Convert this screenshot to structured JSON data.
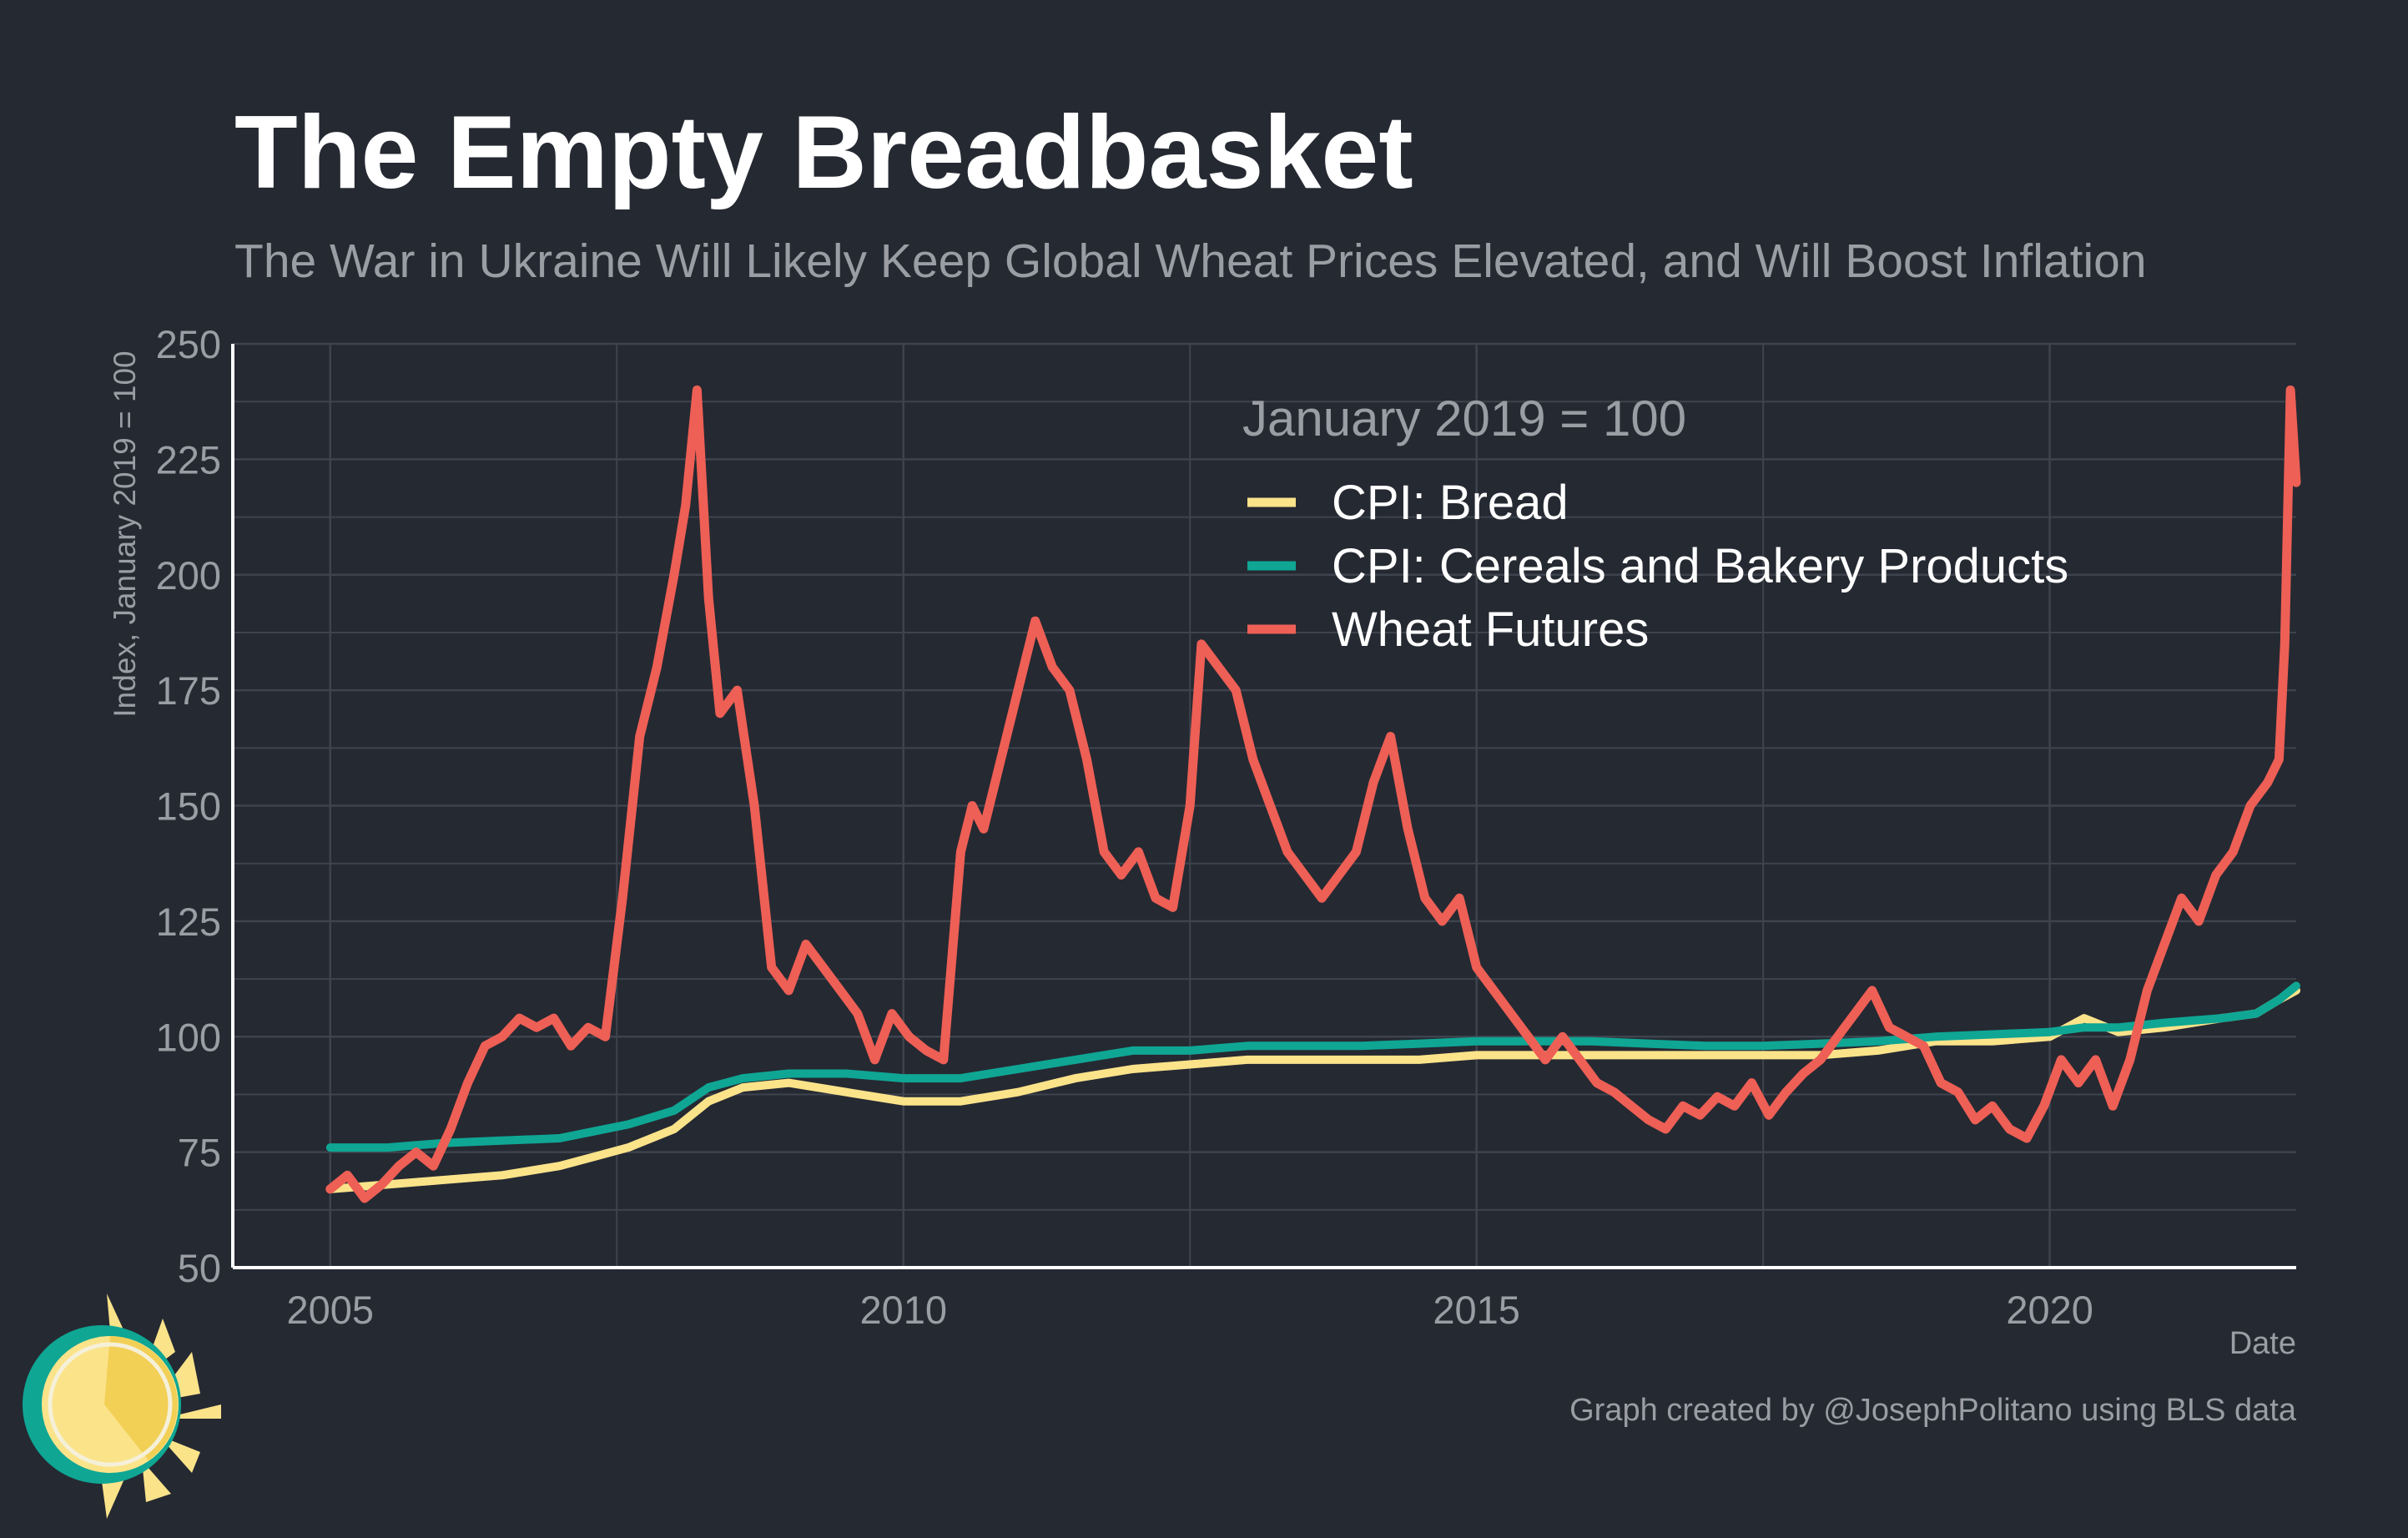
{
  "title": "The Empty Breadbasket",
  "subtitle": "The War in Ukraine Will Likely Keep Global Wheat Prices Elevated, and Will Boost Inflation",
  "caption": "Graph created by @JosephPolitano using BLS data",
  "logo_icon": "sun-logo-icon",
  "colors": {
    "background": "#252932",
    "grid": "#3e434d",
    "axis": "#ffffff",
    "text_muted": "#9a9da3",
    "bread": "#fbe38a",
    "cereals": "#0fa694",
    "wheat": "#ee5f55"
  },
  "chart_data": {
    "type": "line",
    "title": "The Empty Breadbasket",
    "subtitle": "The War in Ukraine Will Likely Keep Global Wheat Prices Elevated, and Will Boost Inflation",
    "xlabel": "Date",
    "ylabel": "Index, January 2019 = 100",
    "xlim": [
      2004.15,
      2022.15
    ],
    "ylim": [
      50,
      250
    ],
    "x_ticks": [
      2005,
      2010,
      2015,
      2020
    ],
    "x_tick_labels": [
      "2005",
      "2010",
      "2015",
      "2020"
    ],
    "y_ticks": [
      50,
      75,
      100,
      125,
      150,
      175,
      200,
      225,
      250
    ],
    "y_tick_labels": [
      "50",
      "75",
      "100",
      "125",
      "150",
      "175",
      "200",
      "225",
      "250"
    ],
    "grid": true,
    "legend_title": "January 2019 = 100",
    "legend_position": "top-right inside",
    "series": [
      {
        "name": "CPI: Bread",
        "color": "#fbe38a",
        "x": [
          2005.0,
          2005.5,
          2006.0,
          2006.5,
          2007.0,
          2007.3,
          2007.6,
          2008.0,
          2008.3,
          2008.6,
          2009.0,
          2009.5,
          2010.0,
          2010.5,
          2011.0,
          2011.5,
          2012.0,
          2012.5,
          2013.0,
          2013.5,
          2014.0,
          2014.5,
          2015.0,
          2015.5,
          2016.0,
          2016.5,
          2017.0,
          2017.5,
          2018.0,
          2018.5,
          2019.0,
          2019.5,
          2020.0,
          2020.3,
          2020.6,
          2021.0,
          2021.5,
          2021.8,
          2022.0,
          2022.15
        ],
        "values": [
          67,
          68,
          69,
          70,
          72,
          74,
          76,
          80,
          86,
          89,
          90,
          88,
          86,
          86,
          88,
          91,
          93,
          94,
          95,
          95,
          95,
          95,
          96,
          96,
          96,
          96,
          96,
          96,
          96,
          97,
          99,
          99,
          100,
          104,
          101,
          102,
          104,
          105,
          108,
          110
        ]
      },
      {
        "name": "CPI: Cereals and Bakery Products",
        "color": "#0fa694",
        "x": [
          2005.0,
          2005.5,
          2006.0,
          2006.5,
          2007.0,
          2007.3,
          2007.6,
          2008.0,
          2008.3,
          2008.6,
          2009.0,
          2009.5,
          2010.0,
          2010.5,
          2011.0,
          2011.5,
          2012.0,
          2012.5,
          2013.0,
          2013.5,
          2014.0,
          2014.5,
          2015.0,
          2015.5,
          2016.0,
          2016.5,
          2017.0,
          2017.5,
          2018.0,
          2018.5,
          2019.0,
          2019.5,
          2020.0,
          2020.3,
          2020.6,
          2021.0,
          2021.5,
          2021.8,
          2022.0,
          2022.15
        ],
        "values": [
          76,
          76,
          77,
          77.5,
          78,
          79.5,
          81,
          84,
          89,
          91,
          92,
          92,
          91,
          91,
          93,
          95,
          97,
          97,
          98,
          98,
          98,
          98.5,
          99,
          99,
          99,
          98.5,
          98,
          98,
          98.5,
          99,
          100,
          100.5,
          101,
          102,
          102,
          103,
          104,
          105,
          108,
          111
        ]
      },
      {
        "name": "Wheat Futures",
        "color": "#ee5f55",
        "x": [
          2005.0,
          2005.15,
          2005.3,
          2005.45,
          2005.6,
          2005.75,
          2005.9,
          2006.05,
          2006.2,
          2006.35,
          2006.5,
          2006.65,
          2006.8,
          2006.95,
          2007.1,
          2007.25,
          2007.4,
          2007.55,
          2007.7,
          2007.85,
          2008.0,
          2008.1,
          2008.2,
          2008.3,
          2008.4,
          2008.55,
          2008.7,
          2008.85,
          2009.0,
          2009.15,
          2009.3,
          2009.45,
          2009.6,
          2009.75,
          2009.9,
          2010.05,
          2010.2,
          2010.35,
          2010.5,
          2010.6,
          2010.7,
          2010.85,
          2011.0,
          2011.15,
          2011.3,
          2011.45,
          2011.6,
          2011.75,
          2011.9,
          2012.05,
          2012.2,
          2012.35,
          2012.5,
          2012.6,
          2012.75,
          2012.9,
          2013.05,
          2013.2,
          2013.35,
          2013.5,
          2013.65,
          2013.8,
          2013.95,
          2014.1,
          2014.25,
          2014.4,
          2014.55,
          2014.7,
          2014.85,
          2015.0,
          2015.15,
          2015.3,
          2015.45,
          2015.6,
          2015.75,
          2015.9,
          2016.05,
          2016.2,
          2016.35,
          2016.5,
          2016.65,
          2016.8,
          2016.95,
          2017.1,
          2017.25,
          2017.4,
          2017.55,
          2017.7,
          2017.85,
          2018.0,
          2018.15,
          2018.3,
          2018.45,
          2018.6,
          2018.75,
          2018.9,
          2019.05,
          2019.2,
          2019.35,
          2019.5,
          2019.65,
          2019.8,
          2019.95,
          2020.1,
          2020.25,
          2020.4,
          2020.55,
          2020.7,
          2020.85,
          2021.0,
          2021.15,
          2021.3,
          2021.45,
          2021.6,
          2021.75,
          2021.9,
          2022.0,
          2022.05,
          2022.1,
          2022.15
        ],
        "values": [
          67,
          70,
          65,
          68,
          72,
          75,
          72,
          80,
          90,
          98,
          100,
          104,
          102,
          104,
          98,
          102,
          100,
          130,
          165,
          180,
          200,
          215,
          240,
          195,
          170,
          175,
          150,
          115,
          110,
          120,
          115,
          110,
          105,
          95,
          105,
          100,
          97,
          95,
          140,
          150,
          145,
          160,
          175,
          190,
          180,
          175,
          160,
          140,
          135,
          140,
          130,
          128,
          150,
          185,
          180,
          175,
          160,
          150,
          140,
          135,
          130,
          135,
          140,
          155,
          165,
          145,
          130,
          125,
          130,
          115,
          110,
          105,
          100,
          95,
          100,
          95,
          90,
          88,
          85,
          82,
          80,
          85,
          83,
          87,
          85,
          90,
          83,
          88,
          92,
          95,
          100,
          105,
          110,
          102,
          100,
          98,
          90,
          88,
          82,
          85,
          80,
          78,
          85,
          95,
          90,
          95,
          85,
          95,
          110,
          120,
          130,
          125,
          135,
          140,
          150,
          155,
          160,
          185,
          240,
          220
        ]
      }
    ]
  }
}
